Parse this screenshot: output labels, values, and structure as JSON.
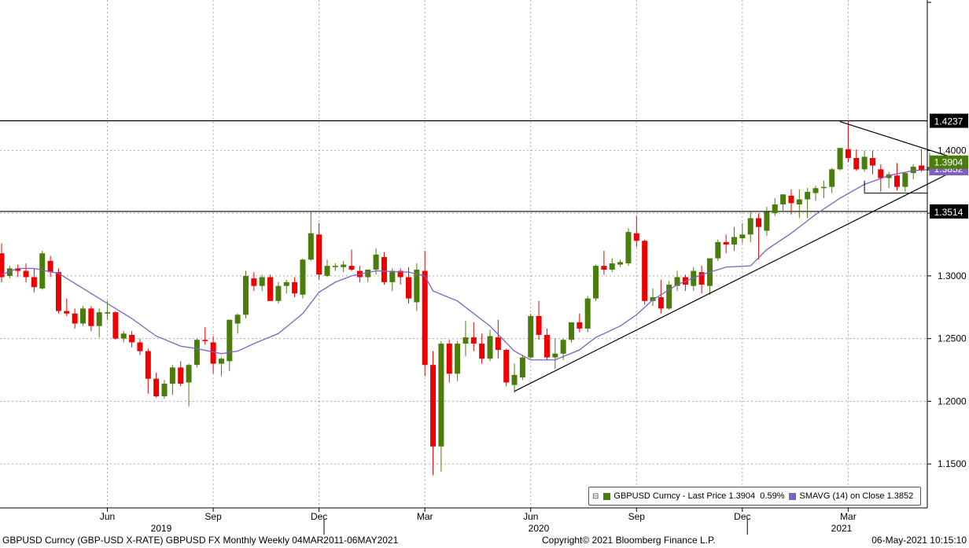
{
  "footer": {
    "left": "GBPUSD Curncy (GBP-USD X-RATE) GBPUSD FX Monthly  Weekly 04MAR2011-06MAY2021",
    "center": "Copyright© 2021 Bloomberg Finance L.P.",
    "right": "06-May-2021 10:15:10"
  },
  "legend": {
    "collapse_icon": "minus-box-icon",
    "price_label": "GBPUSD Curncy - Last Price",
    "price_value": "1.3904",
    "price_change": "0.59%",
    "sma_label": "SMAVG (14)  on Close",
    "sma_value": "1.3852"
  },
  "colors": {
    "up": "#4a7d0c",
    "down": "#ee0000",
    "sma": "#8060c0",
    "trend_line": "#000000",
    "grid": "#aaaaaa"
  },
  "chart_data": {
    "type": "candlestick",
    "instrument": "GBPUSD",
    "y_axis": {
      "min": 1.115,
      "max": 1.52,
      "ticks": [
        "1.1500",
        "1.2000",
        "1.2500",
        "1.3000",
        "1.3500",
        "1.4000"
      ]
    },
    "x_axis": {
      "month_ticks": [
        "Jun",
        "Sep",
        "Dec",
        "Mar",
        "Jun",
        "Sep",
        "Dec",
        "Mar"
      ],
      "year_ticks": [
        "2019",
        "2020",
        "2021"
      ]
    },
    "candles": [
      [
        1.318,
        1.326,
        1.295,
        1.299
      ],
      [
        1.3,
        1.308,
        1.298,
        1.306
      ],
      [
        1.306,
        1.309,
        1.299,
        1.304
      ],
      [
        1.304,
        1.31,
        1.295,
        1.299
      ],
      [
        1.299,
        1.306,
        1.287,
        1.291
      ],
      [
        1.29,
        1.32,
        1.289,
        1.318
      ],
      [
        1.312,
        1.316,
        1.299,
        1.303
      ],
      [
        1.303,
        1.306,
        1.27,
        1.272
      ],
      [
        1.272,
        1.282,
        1.268,
        1.27
      ],
      [
        1.27,
        1.274,
        1.258,
        1.262
      ],
      [
        1.262,
        1.276,
        1.26,
        1.274
      ],
      [
        1.274,
        1.276,
        1.256,
        1.26
      ],
      [
        1.26,
        1.274,
        1.251,
        1.271
      ],
      [
        1.27,
        1.28,
        1.265,
        1.271
      ],
      [
        1.271,
        1.272,
        1.249,
        1.25
      ],
      [
        1.25,
        1.256,
        1.247,
        1.254
      ],
      [
        1.253,
        1.256,
        1.243,
        1.247
      ],
      [
        1.247,
        1.25,
        1.237,
        1.24
      ],
      [
        1.24,
        1.242,
        1.206,
        1.218
      ],
      [
        1.218,
        1.223,
        1.203,
        1.204
      ],
      [
        1.204,
        1.217,
        1.202,
        1.214
      ],
      [
        1.214,
        1.229,
        1.205,
        1.227
      ],
      [
        1.227,
        1.232,
        1.212,
        1.214
      ],
      [
        1.215,
        1.23,
        1.196,
        1.229
      ],
      [
        1.229,
        1.25,
        1.227,
        1.249
      ],
      [
        1.249,
        1.259,
        1.245,
        1.248
      ],
      [
        1.247,
        1.252,
        1.222,
        1.23
      ],
      [
        1.23,
        1.235,
        1.22,
        1.234
      ],
      [
        1.232,
        1.265,
        1.224,
        1.265
      ],
      [
        1.262,
        1.27,
        1.254,
        1.269
      ],
      [
        1.269,
        1.304,
        1.266,
        1.3
      ],
      [
        1.298,
        1.303,
        1.288,
        1.292
      ],
      [
        1.292,
        1.301,
        1.288,
        1.299
      ],
      [
        1.299,
        1.301,
        1.28,
        1.28
      ],
      [
        1.28,
        1.295,
        1.278,
        1.292
      ],
      [
        1.292,
        1.297,
        1.286,
        1.295
      ],
      [
        1.295,
        1.299,
        1.283,
        1.286
      ],
      [
        1.285,
        1.314,
        1.282,
        1.313
      ],
      [
        1.313,
        1.352,
        1.312,
        1.334
      ],
      [
        1.333,
        1.342,
        1.297,
        1.301
      ],
      [
        1.3,
        1.313,
        1.299,
        1.308
      ],
      [
        1.307,
        1.31,
        1.304,
        1.308
      ],
      [
        1.307,
        1.312,
        1.303,
        1.309
      ],
      [
        1.308,
        1.321,
        1.304,
        1.305
      ],
      [
        1.304,
        1.308,
        1.295,
        1.299
      ],
      [
        1.299,
        1.305,
        1.295,
        1.305
      ],
      [
        1.305,
        1.322,
        1.301,
        1.317
      ],
      [
        1.315,
        1.319,
        1.293,
        1.295
      ],
      [
        1.295,
        1.306,
        1.288,
        1.304
      ],
      [
        1.304,
        1.306,
        1.293,
        1.299
      ],
      [
        1.299,
        1.307,
        1.278,
        1.282
      ],
      [
        1.279,
        1.31,
        1.272,
        1.305
      ],
      [
        1.304,
        1.32,
        1.22,
        1.229
      ],
      [
        1.229,
        1.24,
        1.141,
        1.164
      ],
      [
        1.164,
        1.248,
        1.144,
        1.246
      ],
      [
        1.246,
        1.249,
        1.215,
        1.222
      ],
      [
        1.222,
        1.248,
        1.216,
        1.246
      ],
      [
        1.246,
        1.264,
        1.236,
        1.251
      ],
      [
        1.251,
        1.263,
        1.24,
        1.246
      ],
      [
        1.246,
        1.254,
        1.23,
        1.234
      ],
      [
        1.234,
        1.257,
        1.232,
        1.252
      ],
      [
        1.251,
        1.265,
        1.234,
        1.241
      ],
      [
        1.241,
        1.242,
        1.212,
        1.215
      ],
      [
        1.213,
        1.23,
        1.207,
        1.221
      ],
      [
        1.219,
        1.237,
        1.217,
        1.235
      ],
      [
        1.235,
        1.27,
        1.234,
        1.268
      ],
      [
        1.268,
        1.28,
        1.249,
        1.253
      ],
      [
        1.253,
        1.258,
        1.233,
        1.235
      ],
      [
        1.235,
        1.25,
        1.226,
        1.238
      ],
      [
        1.238,
        1.25,
        1.233,
        1.249
      ],
      [
        1.249,
        1.263,
        1.247,
        1.263
      ],
      [
        1.263,
        1.27,
        1.255,
        1.258
      ],
      [
        1.258,
        1.284,
        1.255,
        1.282
      ],
      [
        1.282,
        1.309,
        1.28,
        1.308
      ],
      [
        1.308,
        1.32,
        1.301,
        1.305
      ],
      [
        1.305,
        1.314,
        1.303,
        1.31
      ],
      [
        1.309,
        1.313,
        1.307,
        1.311
      ],
      [
        1.31,
        1.338,
        1.308,
        1.335
      ],
      [
        1.334,
        1.348,
        1.323,
        1.328
      ],
      [
        1.328,
        1.329,
        1.277,
        1.28
      ],
      [
        1.28,
        1.29,
        1.276,
        1.283
      ],
      [
        1.283,
        1.297,
        1.27,
        1.274
      ],
      [
        1.274,
        1.296,
        1.273,
        1.293
      ],
      [
        1.292,
        1.304,
        1.288,
        1.299
      ],
      [
        1.299,
        1.301,
        1.288,
        1.293
      ],
      [
        1.292,
        1.307,
        1.288,
        1.304
      ],
      [
        1.303,
        1.308,
        1.286,
        1.293
      ],
      [
        1.292,
        1.314,
        1.285,
        1.314
      ],
      [
        1.314,
        1.329,
        1.312,
        1.327
      ],
      [
        1.327,
        1.333,
        1.318,
        1.325
      ],
      [
        1.325,
        1.339,
        1.32,
        1.331
      ],
      [
        1.33,
        1.342,
        1.326,
        1.333
      ],
      [
        1.333,
        1.352,
        1.327,
        1.346
      ],
      [
        1.346,
        1.35,
        1.313,
        1.339
      ],
      [
        1.336,
        1.355,
        1.332,
        1.351
      ],
      [
        1.35,
        1.362,
        1.348,
        1.357
      ],
      [
        1.357,
        1.365,
        1.352,
        1.365
      ],
      [
        1.364,
        1.369,
        1.349,
        1.358
      ],
      [
        1.357,
        1.369,
        1.346,
        1.361
      ],
      [
        1.361,
        1.37,
        1.346,
        1.367
      ],
      [
        1.366,
        1.372,
        1.36,
        1.37
      ],
      [
        1.37,
        1.376,
        1.362,
        1.371
      ],
      [
        1.371,
        1.386,
        1.366,
        1.385
      ],
      [
        1.385,
        1.402,
        1.384,
        1.402
      ],
      [
        1.401,
        1.424,
        1.391,
        1.394
      ],
      [
        1.394,
        1.401,
        1.384,
        1.385
      ],
      [
        1.385,
        1.4,
        1.383,
        1.395
      ],
      [
        1.394,
        1.4,
        1.381,
        1.388
      ],
      [
        1.385,
        1.389,
        1.367,
        1.378
      ],
      [
        1.378,
        1.383,
        1.37,
        1.381
      ],
      [
        1.38,
        1.39,
        1.368,
        1.371
      ],
      [
        1.371,
        1.383,
        1.367,
        1.382
      ],
      [
        1.382,
        1.389,
        1.377,
        1.387
      ],
      [
        1.388,
        1.401,
        1.383,
        1.384
      ],
      [
        1.384,
        1.398,
        1.38,
        1.387
      ],
      [
        1.383,
        1.392,
        1.382,
        1.3904
      ]
    ],
    "sma14": [
      [
        0,
        1.301
      ],
      [
        2,
        1.306
      ],
      [
        4,
        1.306
      ],
      [
        7,
        1.302
      ],
      [
        10,
        1.29
      ],
      [
        13,
        1.278
      ],
      [
        16,
        1.266
      ],
      [
        19,
        1.252
      ],
      [
        22,
        1.244
      ],
      [
        24,
        1.242
      ],
      [
        27,
        1.238
      ],
      [
        29,
        1.24
      ],
      [
        31,
        1.246
      ],
      [
        34,
        1.254
      ],
      [
        37,
        1.27
      ],
      [
        39,
        1.287
      ],
      [
        41,
        1.295
      ],
      [
        43,
        1.3
      ],
      [
        46,
        1.304
      ],
      [
        50,
        1.303
      ],
      [
        52,
        1.3
      ],
      [
        53,
        1.288
      ],
      [
        56,
        1.28
      ],
      [
        60,
        1.26
      ],
      [
        63,
        1.24
      ],
      [
        65,
        1.233
      ],
      [
        68,
        1.233
      ],
      [
        71,
        1.241
      ],
      [
        73,
        1.251
      ],
      [
        76,
        1.26
      ],
      [
        78,
        1.269
      ],
      [
        80,
        1.281
      ],
      [
        83,
        1.293
      ],
      [
        86,
        1.301
      ],
      [
        89,
        1.307
      ],
      [
        92,
        1.308
      ],
      [
        94,
        1.321
      ],
      [
        97,
        1.334
      ],
      [
        100,
        1.349
      ],
      [
        103,
        1.362
      ],
      [
        106,
        1.373
      ],
      [
        109,
        1.38
      ],
      [
        112,
        1.384
      ],
      [
        115,
        1.3852
      ]
    ],
    "horizontal_levels": [
      "1.4237",
      "1.3514"
    ],
    "last_price_label": "1.3904",
    "sma_label": "1.3852",
    "trendlines": [
      {
        "from": [
          63,
          1.208
        ],
        "to": [
          118,
          1.387
        ]
      },
      {
        "from": [
          103,
          1.423
        ],
        "to": [
          118,
          1.392
        ]
      }
    ],
    "range_box_bottom": 1.366,
    "grid": true
  }
}
